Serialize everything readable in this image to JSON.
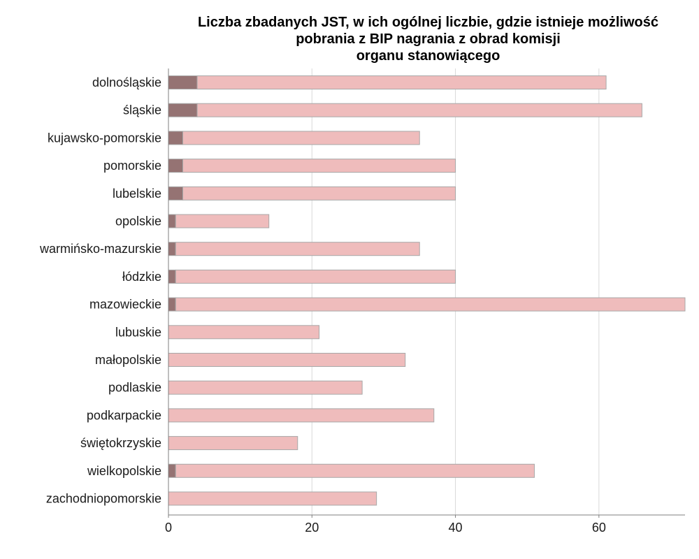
{
  "chart_data": {
    "type": "bar",
    "orientation": "horizontal",
    "stacked": true,
    "title_lines": [
      "Liczba zbadanych JST, w ich ogólnej liczbie, gdzie istnieje możliwość",
      "pobrania z BIP nagrania z obrad komisji",
      "organu stanowiącego"
    ],
    "xlabel": "",
    "ylabel": "",
    "categories": [
      "dolnośląskie",
      "śląskie",
      "kujawsko-pomorskie",
      "pomorskie",
      "lubelskie",
      "opolskie",
      "warmińsko-mazurskie",
      "łódzkie",
      "mazowieckie",
      "lubuskie",
      "małopolskie",
      "podlaskie",
      "podkarpackie",
      "świętokrzyskie",
      "wielkopolskie",
      "zachodniopomorskie"
    ],
    "series": [
      {
        "values": [
          4,
          4,
          2,
          2,
          2,
          1,
          1,
          1,
          1,
          0,
          0,
          0,
          0,
          0,
          1,
          0
        ],
        "color": "#957373"
      },
      {
        "values": [
          57,
          62,
          33,
          38,
          38,
          13,
          34,
          39,
          71,
          21,
          33,
          27,
          37,
          18,
          50,
          29
        ],
        "color": "#efbcbc"
      }
    ],
    "totals": [
      61,
      66,
      35,
      40,
      40,
      14,
      35,
      40,
      72,
      21,
      33,
      27,
      37,
      18,
      51,
      29
    ],
    "xlim": [
      0,
      72
    ],
    "xticks": [
      0,
      20,
      40,
      60
    ],
    "grid": "vertical",
    "legend": "none",
    "bar_edge_color": "#a8a8a8",
    "grid_color": "#d9d9d9"
  }
}
